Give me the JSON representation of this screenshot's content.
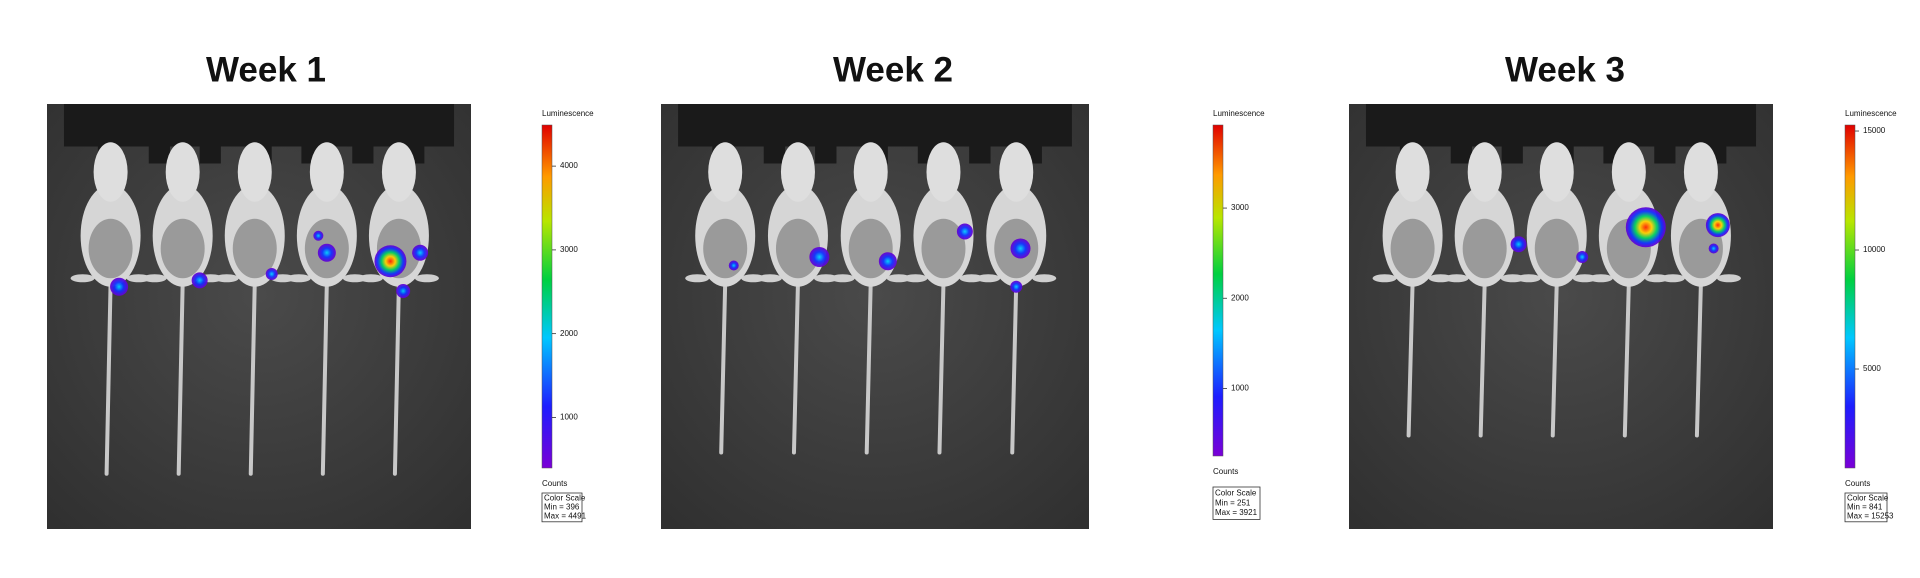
{
  "panels": [
    {
      "title": "Week 1",
      "colorbar": {
        "label": "Luminescence",
        "ticks": [
          1000,
          2000,
          3000,
          4000
        ],
        "units": "Counts",
        "box_title": "Color Scale",
        "min": {
          "value": 396,
          "label": "Min = 396"
        },
        "max": {
          "value": 4491,
          "label": "Max = 4491"
        }
      }
    },
    {
      "title": "Week 2",
      "colorbar": {
        "label": "Luminescence",
        "ticks": [
          1000,
          2000,
          3000
        ],
        "units": "Counts",
        "box_title": "Color Scale",
        "min": {
          "value": 251,
          "label": "Min = 251"
        },
        "max": {
          "value": 3921,
          "label": "Max = 3921"
        }
      }
    },
    {
      "title": "Week 3",
      "colorbar": {
        "label": "Luminescence",
        "ticks": [
          5000,
          10000,
          15000
        ],
        "units": "Counts",
        "box_title": "Color Scale",
        "min": {
          "value": 841,
          "label": "Min = 841"
        },
        "max": {
          "value": 15253,
          "label": "Max = 15253"
        }
      }
    }
  ]
}
